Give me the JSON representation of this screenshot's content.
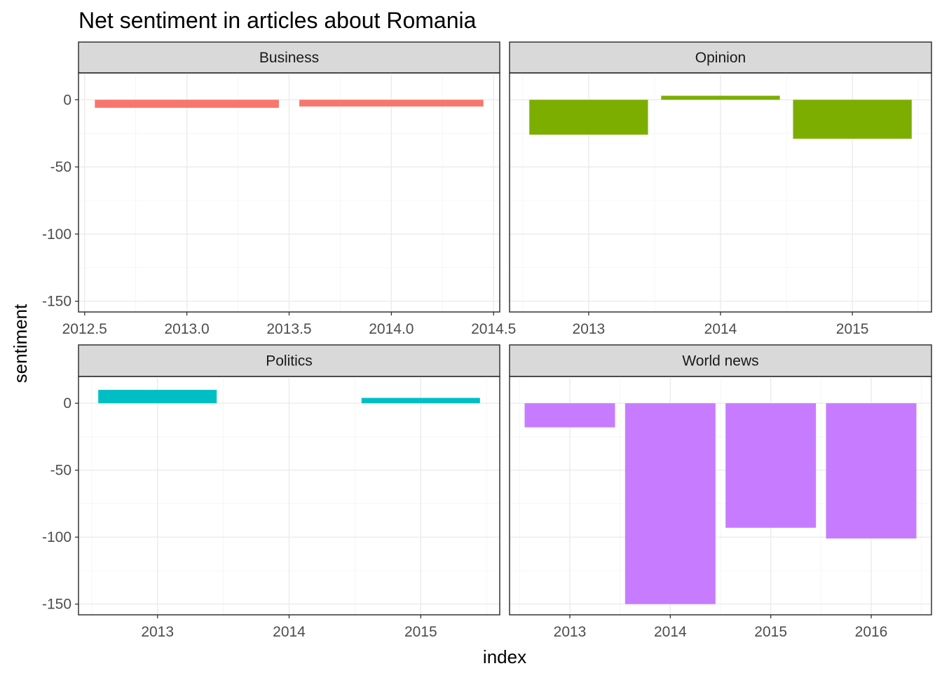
{
  "chart_data": {
    "type": "bar",
    "title": "Net sentiment in articles about Romania",
    "xlabel": "index",
    "ylabel": "sentiment",
    "ylim": [
      -158,
      20
    ],
    "yticks": [
      0,
      -50,
      -100,
      -150
    ],
    "grid": true,
    "legend": "none",
    "facets": [
      {
        "name": "Business",
        "color": "#F8766D",
        "xlim": [
          2012.47,
          2014.53
        ],
        "xticks": [
          2012.5,
          2013.0,
          2013.5,
          2014.0,
          2014.5
        ],
        "xtick_labels": [
          "2012.5",
          "2013.0",
          "2013.5",
          "2014.0",
          "2014.5"
        ],
        "bar_width": 0.9,
        "bars": [
          {
            "x": 2013,
            "value": -6
          },
          {
            "x": 2014,
            "value": -5
          }
        ]
      },
      {
        "name": "Opinion",
        "color": "#7CAE00",
        "xlim": [
          2012.4,
          2015.6
        ],
        "xticks": [
          2013,
          2014,
          2015
        ],
        "xtick_labels": [
          "2013",
          "2014",
          "2015"
        ],
        "bar_width": 0.9,
        "bars": [
          {
            "x": 2013,
            "value": -26
          },
          {
            "x": 2014,
            "value": 3
          },
          {
            "x": 2015,
            "value": -29
          }
        ]
      },
      {
        "name": "Politics",
        "color": "#00BFC4",
        "xlim": [
          2012.4,
          2015.6
        ],
        "xticks": [
          2013,
          2014,
          2015
        ],
        "xtick_labels": [
          "2013",
          "2014",
          "2015"
        ],
        "bar_width": 0.9,
        "bars": [
          {
            "x": 2013,
            "value": 10
          },
          {
            "x": 2015,
            "value": 4
          }
        ]
      },
      {
        "name": "World news",
        "color": "#C77CFF",
        "xlim": [
          2012.4,
          2016.6
        ],
        "xticks": [
          2013,
          2014,
          2015,
          2016
        ],
        "xtick_labels": [
          "2013",
          "2014",
          "2015",
          "2016"
        ],
        "bar_width": 0.9,
        "bars": [
          {
            "x": 2013,
            "value": -18
          },
          {
            "x": 2014,
            "value": -150
          },
          {
            "x": 2015,
            "value": -93
          },
          {
            "x": 2016,
            "value": -101
          }
        ]
      }
    ]
  }
}
